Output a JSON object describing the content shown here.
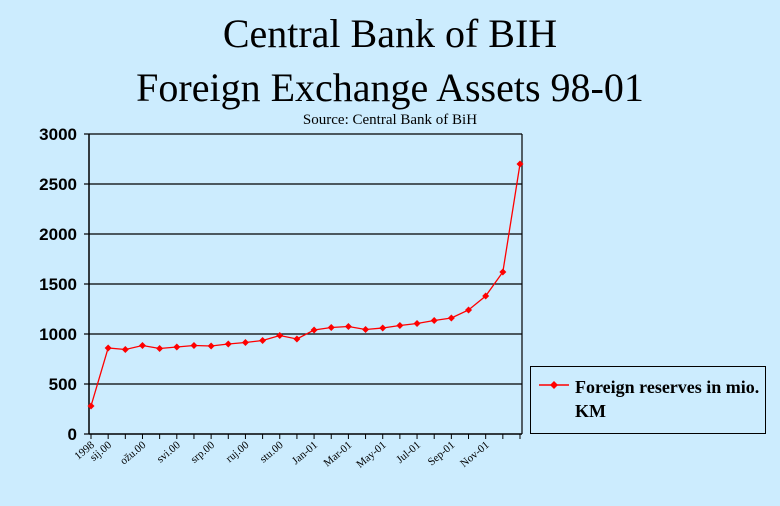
{
  "chart_data": {
    "type": "line",
    "title_line1": "Central Bank of BIH",
    "title_line2": "Foreign Exchange Assets 98-01",
    "subtitle": "Source: Central Bank of BiH",
    "xlabel": "",
    "ylabel": "",
    "ylim": [
      0,
      3000
    ],
    "yticks": [
      0,
      500,
      1000,
      1500,
      2000,
      2500,
      3000
    ],
    "grid": true,
    "legend_position": "right",
    "x_tick_labels": [
      "1998",
      "sij.00",
      "ožu.00",
      "svi.00",
      "srp.00",
      "ruj.00",
      "stu.00",
      "Jan-01",
      "Mar-01",
      "May-01",
      "Jul-01",
      "Sep-01",
      "Nov-01"
    ],
    "x_tick_label_positions": [
      0,
      1,
      3,
      5,
      7,
      9,
      11,
      13,
      15,
      17,
      19,
      21,
      23
    ],
    "series": [
      {
        "name": "Foreign reserves in mio. KM",
        "color": "#ff0000",
        "values": [
          280,
          860,
          845,
          885,
          855,
          870,
          885,
          880,
          900,
          915,
          935,
          985,
          950,
          1040,
          1065,
          1075,
          1045,
          1060,
          1085,
          1105,
          1135,
          1160,
          1240,
          1380,
          1620,
          2700
        ]
      }
    ]
  }
}
